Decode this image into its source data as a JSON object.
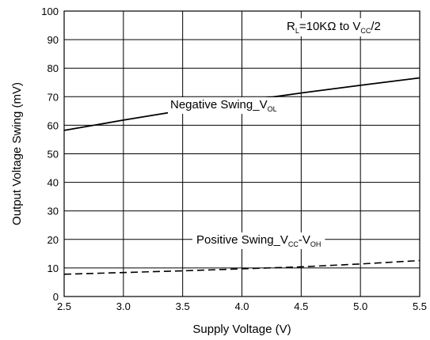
{
  "chart_data": {
    "type": "line",
    "xlabel": "Supply Voltage (V)",
    "ylabel": "Output Voltage Swing (mV)",
    "xlim": [
      2.5,
      5.5
    ],
    "ylim": [
      0,
      100
    ],
    "x_ticks": [
      "2.5",
      "3.0",
      "3.5",
      "4.0",
      "4.5",
      "5.0",
      "5.5"
    ],
    "y_ticks": [
      "0",
      "10",
      "20",
      "30",
      "40",
      "50",
      "60",
      "70",
      "80",
      "90",
      "100"
    ],
    "grid": true,
    "annotation": {
      "main": "R",
      "sub1": "L",
      "mid": "=10KΩ to V",
      "sub2": "CC",
      "end": "/2"
    },
    "series": [
      {
        "name": "Negative Swing_VOL",
        "label": {
          "main": "Negative Swing_V",
          "sub": "OL"
        },
        "style": "solid",
        "x": [
          2.5,
          3.0,
          3.5,
          4.0,
          4.5,
          5.0,
          5.5
        ],
        "values": [
          58.2,
          61.8,
          65.2,
          68.4,
          71.3,
          74.0,
          76.6
        ]
      },
      {
        "name": "Positive Swing_VCC-VOH",
        "label": {
          "main": "Positive Swing_V",
          "sub1": "CC",
          "mid": "-V",
          "sub2": "OH"
        },
        "style": "dashed",
        "x": [
          2.5,
          3.0,
          3.5,
          4.0,
          4.5,
          5.0,
          5.5
        ],
        "values": [
          7.8,
          8.4,
          9.0,
          9.7,
          10.4,
          11.4,
          12.6
        ]
      }
    ]
  }
}
